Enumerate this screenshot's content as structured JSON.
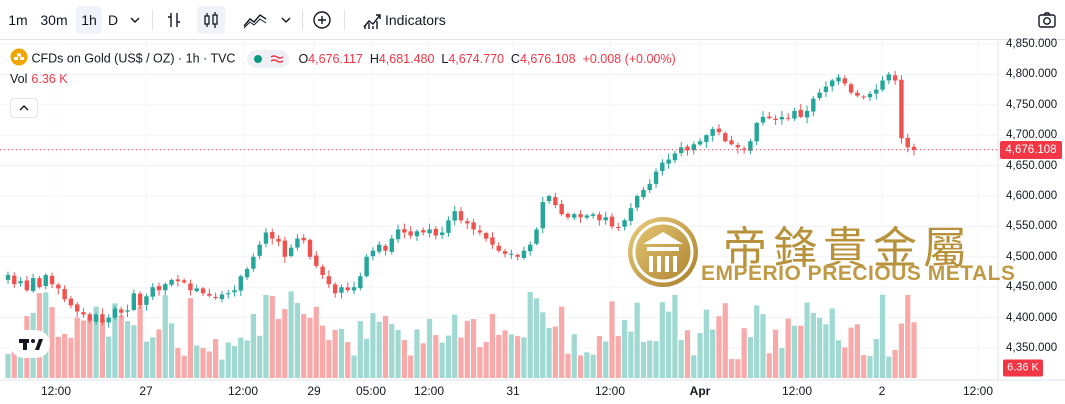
{
  "toolbar": {
    "intervals": [
      "1m",
      "30m",
      "1h",
      "D"
    ],
    "active_interval": "1h",
    "indicators_label": "Indicators"
  },
  "legend": {
    "symbol_title": "CFDs on Gold (US$ / OZ) · 1h · TVC",
    "open_label": "O",
    "open": "4,676.117",
    "high_label": "H",
    "high": "4,681.480",
    "low_label": "L",
    "low": "4,674.770",
    "close_label": "C",
    "close": "4,676.108",
    "change": "+0.008 (+0.00%)",
    "vol_label": "Vol",
    "vol_value": "6.36 K"
  },
  "price_axis": {
    "ticks": [
      "4,850.000",
      "4,800.000",
      "4,750.000",
      "4,700.000",
      "4,650.000",
      "4,600.000",
      "4,550.000",
      "4,500.000",
      "4,450.000",
      "4,400.000",
      "4,350.000"
    ],
    "current_price_tag": "4,676.108",
    "volume_tag": "6.36 K"
  },
  "time_axis": {
    "ticks": [
      {
        "label": "12:00",
        "bold": false
      },
      {
        "label": "27",
        "bold": false
      },
      {
        "label": "12:00",
        "bold": false
      },
      {
        "label": "29",
        "bold": false
      },
      {
        "label": "05:00",
        "bold": false
      },
      {
        "label": "12:00",
        "bold": false
      },
      {
        "label": "31",
        "bold": false
      },
      {
        "label": "12:00",
        "bold": false
      },
      {
        "label": "Apr",
        "bold": true
      },
      {
        "label": "12:00",
        "bold": false
      },
      {
        "label": "2",
        "bold": false
      },
      {
        "label": "12:00",
        "bold": false
      }
    ]
  },
  "watermark": {
    "chinese": "帝鋒貴金屬",
    "english": "EMPERIO PRECIOUS METALS"
  },
  "colors": {
    "up": "#26a69a",
    "down": "#ef5350",
    "up_volume": "#9fd9d2",
    "down_volume": "#f7aaa9",
    "price_line": "#f23645",
    "watermark": "#b8923a"
  },
  "chart_data": {
    "type": "candlestick",
    "y_range": [
      4320,
      4855
    ],
    "close_path": [
      4470,
      4455,
      4460,
      4445,
      4465,
      4450,
      4470,
      4455,
      4448,
      4430,
      4420,
      4410,
      4405,
      4395,
      4405,
      4392,
      4400,
      4415,
      4408,
      4412,
      4440,
      4420,
      4435,
      4450,
      4445,
      4455,
      4462,
      4460,
      4458,
      4445,
      4448,
      4440,
      4436,
      4432,
      4438,
      4440,
      4445,
      4468,
      4480,
      4500,
      4520,
      4540,
      4530,
      4525,
      4500,
      4515,
      4530,
      4527,
      4500,
      4485,
      4470,
      4455,
      4440,
      4450,
      4445,
      4450,
      4468,
      4500,
      4510,
      4520,
      4510,
      4530,
      4545,
      4540,
      4535,
      4542,
      4540,
      4545,
      4535,
      4540,
      4560,
      4575,
      4560,
      4555,
      4545,
      4540,
      4530,
      4520,
      4510,
      4505,
      4505,
      4500,
      4510,
      4520,
      4545,
      4590,
      4600,
      4585,
      4570,
      4565,
      4570,
      4565,
      4568,
      4570,
      4560,
      4565,
      4550,
      4548,
      4560,
      4580,
      4600,
      4610,
      4620,
      4640,
      4655,
      4660,
      4670,
      4680,
      4675,
      4685,
      4690,
      4700,
      4710,
      4705,
      4690,
      4685,
      4680,
      4676,
      4690,
      4720,
      4730,
      4728,
      4725,
      4730,
      4728,
      4740,
      4730,
      4740,
      4760,
      4770,
      4780,
      4790,
      4795,
      4785,
      4770,
      4765,
      4762,
      4768,
      4775,
      4790,
      4800,
      4790,
      4695,
      4680,
      4676
    ],
    "volume_range": [
      0,
      12
    ]
  }
}
